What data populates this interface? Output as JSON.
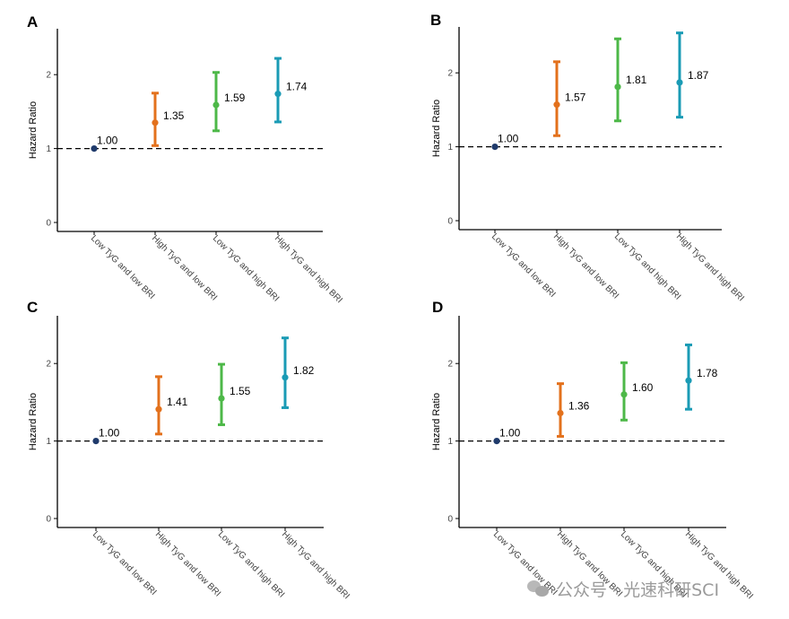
{
  "chart_data": [
    {
      "panel_label": "A",
      "type": "errorbar",
      "ylabel": "Hazard Ratio",
      "ylim": [
        0,
        2.5
      ],
      "yticks": [
        0,
        1,
        2
      ],
      "reference_line": 1,
      "categories": [
        "Low TyG and low BRI",
        "High TyG and low BRI",
        "Low TyG and high BRI",
        "High TyG and high BRI"
      ],
      "values": [
        1.0,
        1.35,
        1.59,
        1.74
      ],
      "labels": [
        "1.00",
        "1.35",
        "1.59",
        "1.74"
      ],
      "lower": [
        1.0,
        1.04,
        1.24,
        1.36
      ],
      "upper": [
        1.0,
        1.75,
        2.03,
        2.22
      ]
    },
    {
      "panel_label": "B",
      "type": "errorbar",
      "ylabel": "Hazard Ratio",
      "ylim": [
        0,
        2.5
      ],
      "yticks": [
        0,
        1,
        2
      ],
      "reference_line": 1,
      "categories": [
        "Low TyG and low BRI",
        "High TyG and low BRI",
        "Low TyG and high BRI",
        "High TyG and high BRI"
      ],
      "values": [
        1.0,
        1.57,
        1.81,
        1.87
      ],
      "labels": [
        "1.00",
        "1.57",
        "1.81",
        "1.87"
      ],
      "lower": [
        1.0,
        1.15,
        1.35,
        1.4
      ],
      "upper": [
        1.0,
        2.15,
        2.46,
        2.54
      ]
    },
    {
      "panel_label": "C",
      "type": "errorbar",
      "ylabel": "Hazard Ratio",
      "ylim": [
        0,
        2.5
      ],
      "yticks": [
        0,
        1,
        2
      ],
      "reference_line": 1,
      "categories": [
        "Low TyG and low BRI",
        "High TyG and low BRI",
        "Low TyG and high BRI",
        "High TyG and high BRI"
      ],
      "values": [
        1.0,
        1.41,
        1.55,
        1.82
      ],
      "labels": [
        "1.00",
        "1.41",
        "1.55",
        "1.82"
      ],
      "lower": [
        1.0,
        1.09,
        1.21,
        1.43
      ],
      "upper": [
        1.0,
        1.83,
        1.99,
        2.33
      ]
    },
    {
      "panel_label": "D",
      "type": "errorbar",
      "ylabel": "Hazard Ratio",
      "ylim": [
        0,
        2.5
      ],
      "yticks": [
        0,
        1,
        2
      ],
      "reference_line": 1,
      "categories": [
        "Low TyG and low BRI",
        "High TyG and low BRI",
        "Low TyG and high BRI",
        "High TyG and high BRI"
      ],
      "values": [
        1.0,
        1.36,
        1.6,
        1.78
      ],
      "labels": [
        "1.00",
        "1.36",
        "1.60",
        "1.78"
      ],
      "lower": [
        1.0,
        1.06,
        1.27,
        1.41
      ],
      "upper": [
        1.0,
        1.74,
        2.01,
        2.24
      ]
    }
  ],
  "colors": [
    "#1f3a6b",
    "#e3711c",
    "#4db848",
    "#1a9bb5"
  ],
  "watermark": "公众号 · 光速科研SCI"
}
